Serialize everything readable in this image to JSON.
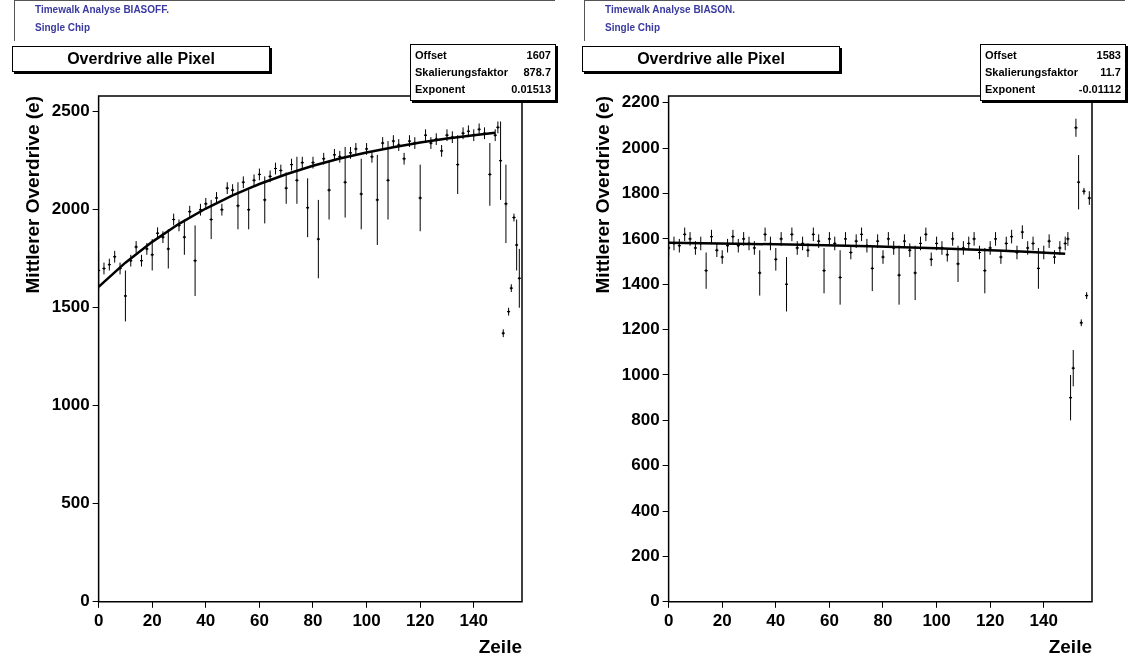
{
  "chart_data": [
    {
      "type": "scatter",
      "title": "Overdrive alle Pixel",
      "annotations": [
        "Timewalk Analyse BIASOFF.",
        "Single Chip",
        "Offset",
        "1607",
        "Skalierungsfaktor",
        "878.7",
        "Exponent",
        "0.01513"
      ],
      "xlabel": "Zeile",
      "ylabel": "Mittlerer Overdrive (e)",
      "xlim": [
        0,
        158
      ],
      "xticks": [
        0,
        20,
        40,
        60,
        80,
        100,
        120,
        140
      ],
      "ylim": [
        0,
        2580
      ],
      "yticks": [
        0,
        500,
        1000,
        1500,
        2000,
        2500
      ],
      "grid": false,
      "legend": false,
      "x": [
        0,
        2,
        4,
        6,
        8,
        10,
        12,
        14,
        16,
        18,
        20,
        22,
        24,
        26,
        28,
        30,
        32,
        34,
        36,
        38,
        40,
        42,
        44,
        46,
        48,
        50,
        52,
        54,
        56,
        58,
        60,
        62,
        64,
        66,
        68,
        70,
        72,
        74,
        76,
        78,
        80,
        82,
        84,
        86,
        88,
        90,
        92,
        94,
        96,
        98,
        100,
        102,
        104,
        106,
        108,
        110,
        112,
        114,
        116,
        118,
        120,
        122,
        124,
        126,
        128,
        130,
        132,
        134,
        136,
        138,
        140,
        142,
        144,
        146,
        148,
        149,
        150,
        151,
        152,
        153,
        154,
        155,
        156,
        157
      ],
      "series": [
        {
          "type": "scatter",
          "color": "#000000",
          "marker": "cross",
          "xerrors": [
            [
              0,
              0.5
            ],
            0.5,
            0.5,
            0.5,
            0.5,
            0.5,
            0.5,
            0.5,
            0.5,
            0.5,
            0.5,
            0.5,
            0.5,
            0.5,
            0.5,
            0.5,
            0.5,
            0.5,
            0.5,
            0.5,
            0.5,
            0.5,
            0.5,
            0.5,
            0.5,
            0.5,
            0.5,
            0.5,
            0.5,
            0.5,
            0.5,
            0.5,
            0.5,
            0.5,
            0.5,
            0.5,
            0.5,
            0.5,
            0.5,
            0.5,
            0.5,
            0.5,
            0.5,
            0.5,
            0.5,
            0.5,
            0.5,
            0.5,
            0.5,
            0.5,
            0.5,
            0.5,
            0.5,
            0.5,
            0.5,
            0.5,
            0.5,
            0.5,
            0.5,
            0.5,
            0.5,
            0.5,
            0.5,
            0.5,
            0.5,
            0.5,
            0.5,
            0.5,
            0.5,
            0.5,
            0.5,
            0.5,
            0.5,
            0.5,
            0.5,
            0.5,
            0.5,
            0.5,
            0.5,
            0.5,
            0.5,
            0.5,
            0.5,
            0.5
          ],
          "values": [
            1690,
            1700,
            1720,
            1760,
            1700,
            1560,
            1740,
            1810,
            1740,
            1800,
            1770,
            1880,
            1860,
            1800,
            1950,
            1920,
            1860,
            1990,
            1740,
            2000,
            2030,
            1950,
            2060,
            2000,
            2110,
            2100,
            2020,
            2140,
            2000,
            2150,
            2180,
            2050,
            2170,
            2210,
            2200,
            2110,
            2230,
            2150,
            2240,
            2010,
            2240,
            1850,
            2260,
            2100,
            2280,
            2270,
            2140,
            2290,
            2310,
            2080,
            2310,
            2270,
            2050,
            2340,
            2150,
            2350,
            2330,
            2260,
            2350,
            2340,
            2060,
            2380,
            2340,
            2360,
            2300,
            2380,
            2370,
            2230,
            2390,
            2400,
            2380,
            2410,
            2390,
            2180,
            2380,
            2420,
            2250,
            1370,
            2030,
            1480,
            1600,
            1960,
            1820,
            1650
          ],
          "errors": [
            100,
            30,
            30,
            30,
            30,
            130,
            30,
            30,
            30,
            30,
            80,
            30,
            30,
            100,
            30,
            30,
            90,
            30,
            180,
            30,
            30,
            100,
            30,
            30,
            30,
            30,
            120,
            30,
            100,
            30,
            30,
            120,
            30,
            30,
            30,
            80,
            30,
            120,
            30,
            150,
            30,
            200,
            30,
            150,
            30,
            30,
            180,
            30,
            30,
            180,
            30,
            30,
            230,
            30,
            200,
            30,
            30,
            30,
            30,
            30,
            170,
            30,
            30,
            30,
            30,
            30,
            30,
            150,
            30,
            30,
            30,
            30,
            30,
            160,
            30,
            30,
            200,
            20,
            200,
            20,
            20,
            20,
            130,
            150
          ]
        },
        {
          "type": "line",
          "color": "#000000",
          "x": [
            0,
            10,
            20,
            30,
            40,
            50,
            60,
            70,
            80,
            90,
            100,
            110,
            120,
            130,
            140,
            148
          ],
          "values": [
            1607,
            1730,
            1836,
            1928,
            2006,
            2073,
            2131,
            2181,
            2224,
            2261,
            2292,
            2319,
            2343,
            2363,
            2380,
            2392
          ]
        }
      ]
    },
    {
      "type": "scatter",
      "title": "Overdrive alle Pixel",
      "annotations": [
        "Timewalk Analyse BIASON.",
        "Single Chip",
        "Offset",
        "1583",
        "Skalierungsfaktor",
        "11.7",
        "Exponent",
        "-0.01112"
      ],
      "xlabel": "Zeile",
      "ylabel": "Mittlerer Overdrive (e)",
      "xlim": [
        0,
        158
      ],
      "xticks": [
        0,
        20,
        40,
        60,
        80,
        100,
        120,
        140
      ],
      "ylim": [
        0,
        2230
      ],
      "yticks": [
        0,
        200,
        400,
        600,
        800,
        1000,
        1200,
        1400,
        1600,
        1800,
        2000,
        2200
      ],
      "grid": false,
      "legend": false,
      "x": [
        0,
        2,
        4,
        6,
        8,
        10,
        12,
        14,
        16,
        18,
        20,
        22,
        24,
        26,
        28,
        30,
        32,
        34,
        36,
        38,
        40,
        42,
        44,
        46,
        48,
        50,
        52,
        54,
        56,
        58,
        60,
        62,
        64,
        66,
        68,
        70,
        72,
        74,
        76,
        78,
        80,
        82,
        84,
        86,
        88,
        90,
        92,
        94,
        96,
        98,
        100,
        102,
        104,
        106,
        108,
        110,
        112,
        114,
        116,
        118,
        120,
        122,
        124,
        126,
        128,
        130,
        132,
        134,
        136,
        138,
        140,
        142,
        144,
        146,
        148,
        149,
        150,
        151,
        152,
        153,
        154,
        155,
        156,
        157
      ],
      "series": [
        {
          "type": "scatter",
          "color": "#000000",
          "marker": "cross",
          "xerrors": [
            [
              0,
              0.5
            ],
            0.5,
            0.5,
            0.5,
            0.5,
            0.5,
            0.5,
            0.5,
            0.5,
            0.5,
            0.5,
            0.5,
            0.5,
            0.5,
            0.5,
            0.5,
            0.5,
            0.5,
            0.5,
            0.5,
            0.5,
            0.5,
            0.5,
            0.5,
            0.5,
            0.5,
            0.5,
            0.5,
            0.5,
            0.5,
            0.5,
            0.5,
            0.5,
            0.5,
            0.5,
            0.5,
            0.5,
            0.5,
            0.5,
            0.5,
            0.5,
            0.5,
            0.5,
            0.5,
            0.5,
            0.5,
            0.5,
            0.5,
            0.5,
            0.5,
            0.5,
            0.5,
            0.5,
            0.5,
            0.5,
            0.5,
            0.5,
            0.5,
            0.5,
            0.5,
            0.5,
            0.5,
            0.5,
            0.5,
            0.5,
            0.5,
            0.5,
            0.5,
            0.5,
            0.5,
            0.5,
            0.5,
            0.5,
            0.5,
            0.5,
            0.5,
            0.5,
            0.5,
            0.5,
            0.5,
            0.5,
            0.5,
            0.5,
            0.5
          ],
          "values": [
            1560,
            1580,
            1570,
            1620,
            1600,
            1560,
            1580,
            1460,
            1610,
            1550,
            1520,
            1570,
            1610,
            1570,
            1600,
            1580,
            1560,
            1450,
            1620,
            1580,
            1510,
            1600,
            1400,
            1620,
            1560,
            1580,
            1550,
            1620,
            1590,
            1460,
            1600,
            1580,
            1430,
            1600,
            1540,
            1590,
            1620,
            1570,
            1470,
            1590,
            1520,
            1600,
            1560,
            1440,
            1590,
            1550,
            1450,
            1580,
            1620,
            1510,
            1580,
            1560,
            1530,
            1600,
            1490,
            1560,
            1580,
            1600,
            1540,
            1460,
            1560,
            1600,
            1520,
            1580,
            1610,
            1540,
            1630,
            1560,
            1580,
            1470,
            1540,
            1590,
            1520,
            1560,
            1580,
            1600,
            900,
            1030,
            2090,
            1850,
            1230,
            1810,
            1350,
            1780
          ],
          "errors": [
            40,
            30,
            30,
            30,
            30,
            30,
            30,
            80,
            30,
            30,
            30,
            30,
            30,
            30,
            30,
            30,
            30,
            100,
            30,
            30,
            50,
            30,
            120,
            30,
            30,
            30,
            30,
            30,
            30,
            100,
            30,
            30,
            120,
            30,
            30,
            30,
            30,
            30,
            100,
            30,
            30,
            30,
            30,
            130,
            30,
            30,
            120,
            30,
            30,
            30,
            30,
            30,
            30,
            30,
            80,
            30,
            30,
            30,
            30,
            100,
            30,
            30,
            30,
            30,
            30,
            30,
            30,
            30,
            30,
            90,
            30,
            30,
            30,
            30,
            30,
            30,
            100,
            80,
            40,
            120,
            15,
            15,
            15,
            30
          ]
        },
        {
          "type": "line",
          "color": "#000000",
          "x": [
            0,
            25,
            50,
            75,
            100,
            125,
            148
          ],
          "values": [
            1583,
            1579,
            1574,
            1568,
            1559,
            1548,
            1534
          ]
        }
      ]
    }
  ]
}
